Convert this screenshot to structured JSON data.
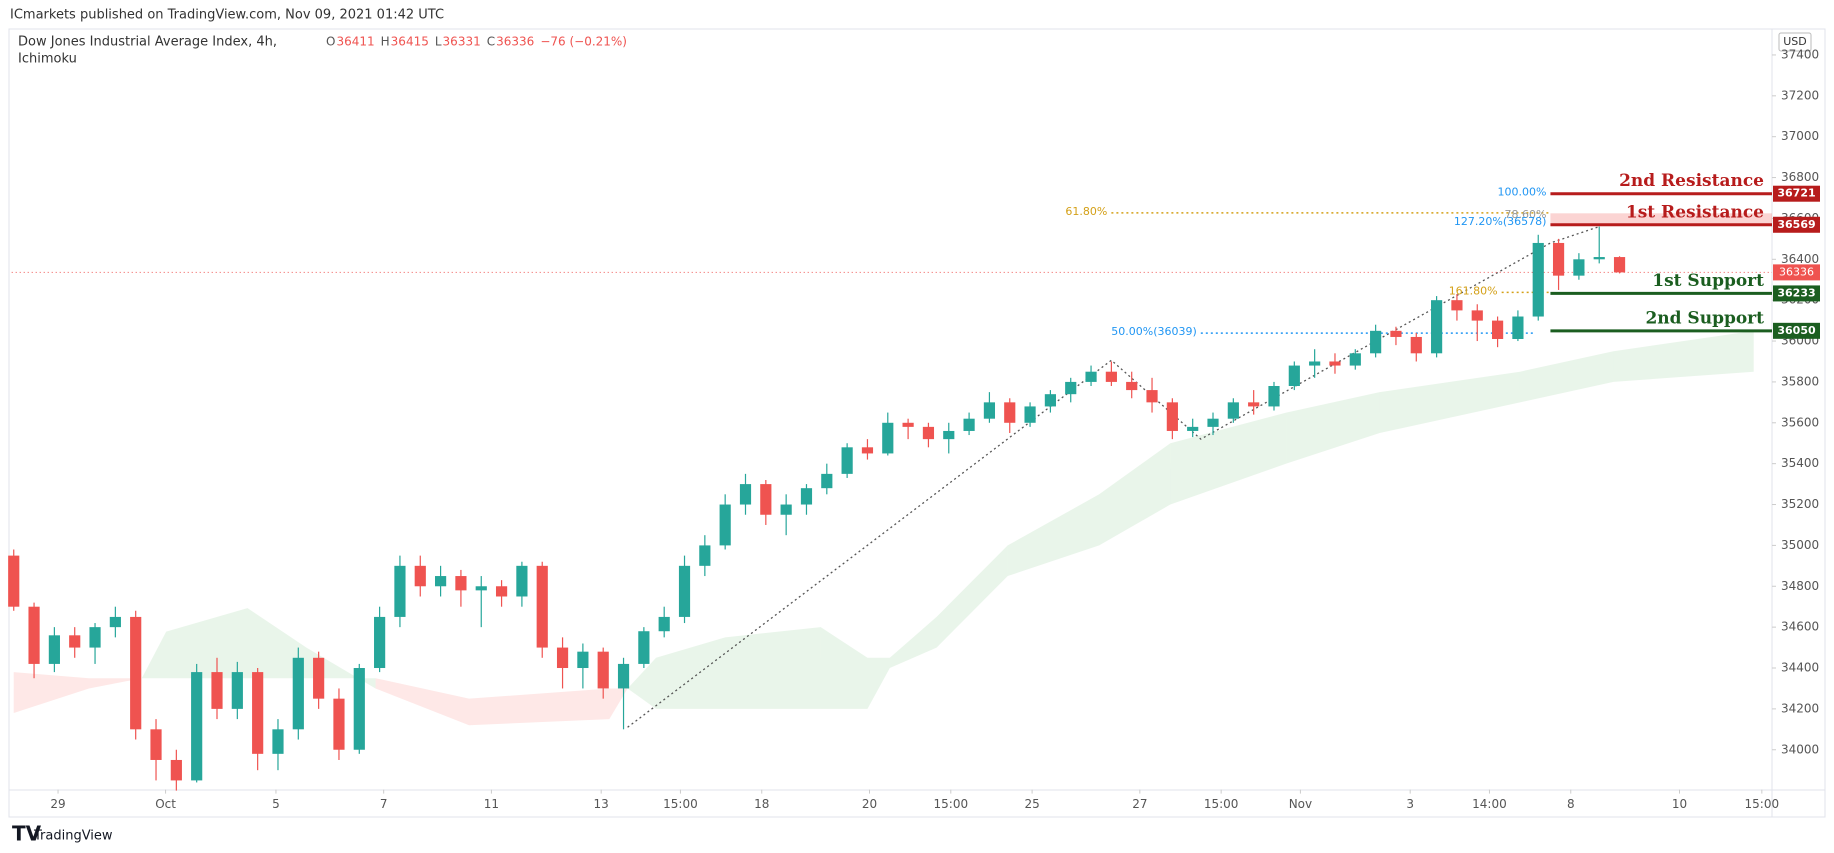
{
  "chart_data": {
    "type": "candlestick",
    "publisher": "ICmarkets published on TradingView.com, Nov 09, 2021 01:42 UTC",
    "title": "Dow Jones Industrial Average Index, 4h,",
    "indicator": "Ichimoku",
    "ohlc": [
      {
        "label": "O",
        "value": 36411
      },
      {
        "label": "H",
        "value": 36415
      },
      {
        "label": "L",
        "value": 36331
      },
      {
        "label": "C",
        "value": 36336
      }
    ],
    "change": "−76 (−0.21%)",
    "currency": "USD",
    "brand": "TradingView",
    "up_color": "#26a69a",
    "down_color": "#ef5350",
    "xlim": [
      -0.1,
      86.5
    ],
    "ylim": [
      33805,
      37526
    ],
    "yticks": [
      34000,
      34200,
      34400,
      34600,
      34800,
      35000,
      35200,
      35400,
      35600,
      35800,
      36000,
      36200,
      36400,
      36600,
      36800,
      37000,
      37200,
      37400
    ],
    "xticks": [
      {
        "value": 2.18,
        "label": "29"
      },
      {
        "value": 7.47,
        "label": "Oct"
      },
      {
        "value": 12.9,
        "label": "5"
      },
      {
        "value": 18.2,
        "label": "7"
      },
      {
        "value": 23.5,
        "label": "11"
      },
      {
        "value": 28.9,
        "label": "13"
      },
      {
        "value": 32.8,
        "label": "15:00"
      },
      {
        "value": 36.8,
        "label": "18"
      },
      {
        "value": 42.1,
        "label": "20"
      },
      {
        "value": 46.1,
        "label": "15:00"
      },
      {
        "value": 50.1,
        "label": "25"
      },
      {
        "value": 55.4,
        "label": "27"
      },
      {
        "value": 59.4,
        "label": "15:00"
      },
      {
        "value": 63.3,
        "label": "Nov"
      },
      {
        "value": 68.7,
        "label": "3"
      },
      {
        "value": 72.6,
        "label": "14:00"
      },
      {
        "value": 76.6,
        "label": "8"
      },
      {
        "value": 81.95,
        "label": "10"
      },
      {
        "value": 86.0,
        "label": "15:00"
      }
    ],
    "candles": [
      [
        34950,
        34980,
        34680,
        34700
      ],
      [
        34700,
        34720,
        34350,
        34420
      ],
      [
        34420,
        34600,
        34380,
        34560
      ],
      [
        34560,
        34600,
        34450,
        34500
      ],
      [
        34500,
        34620,
        34420,
        34600
      ],
      [
        34600,
        34700,
        34550,
        34650
      ],
      [
        34650,
        34680,
        34050,
        34100
      ],
      [
        34100,
        34150,
        33850,
        33950
      ],
      [
        33950,
        34000,
        33800,
        33850
      ],
      [
        33850,
        34420,
        33840,
        34380
      ],
      [
        34380,
        34450,
        34150,
        34200
      ],
      [
        34200,
        34430,
        34150,
        34380
      ],
      [
        34380,
        34400,
        33900,
        33980
      ],
      [
        33980,
        34150,
        33900,
        34100
      ],
      [
        34100,
        34500,
        34050,
        34450
      ],
      [
        34450,
        34480,
        34200,
        34250
      ],
      [
        34250,
        34300,
        33950,
        34000
      ],
      [
        34000,
        34420,
        33980,
        34400
      ],
      [
        34400,
        34700,
        34380,
        34650
      ],
      [
        34650,
        34950,
        34600,
        34900
      ],
      [
        34900,
        34950,
        34750,
        34800
      ],
      [
        34800,
        34900,
        34750,
        34850
      ],
      [
        34850,
        34880,
        34700,
        34780
      ],
      [
        34780,
        34850,
        34600,
        34800
      ],
      [
        34800,
        34830,
        34700,
        34750
      ],
      [
        34750,
        34920,
        34700,
        34900
      ],
      [
        34900,
        34920,
        34450,
        34500
      ],
      [
        34500,
        34550,
        34300,
        34400
      ],
      [
        34400,
        34520,
        34300,
        34480
      ],
      [
        34480,
        34500,
        34250,
        34300
      ],
      [
        34300,
        34450,
        34100,
        34420
      ],
      [
        34420,
        34600,
        34400,
        34580
      ],
      [
        34580,
        34700,
        34550,
        34650
      ],
      [
        34650,
        34950,
        34620,
        34900
      ],
      [
        34900,
        35050,
        34850,
        35000
      ],
      [
        35000,
        35250,
        34980,
        35200
      ],
      [
        35200,
        35350,
        35150,
        35300
      ],
      [
        35300,
        35320,
        35100,
        35150
      ],
      [
        35150,
        35250,
        35050,
        35200
      ],
      [
        35200,
        35300,
        35150,
        35280
      ],
      [
        35280,
        35400,
        35250,
        35350
      ],
      [
        35350,
        35500,
        35330,
        35480
      ],
      [
        35480,
        35520,
        35420,
        35450
      ],
      [
        35450,
        35650,
        35440,
        35600
      ],
      [
        35600,
        35620,
        35520,
        35580
      ],
      [
        35580,
        35600,
        35480,
        35520
      ],
      [
        35520,
        35600,
        35450,
        35560
      ],
      [
        35560,
        35650,
        35540,
        35620
      ],
      [
        35620,
        35750,
        35600,
        35700
      ],
      [
        35700,
        35720,
        35550,
        35600
      ],
      [
        35600,
        35700,
        35580,
        35680
      ],
      [
        35680,
        35760,
        35650,
        35740
      ],
      [
        35740,
        35820,
        35700,
        35800
      ],
      [
        35800,
        35880,
        35780,
        35850
      ],
      [
        35850,
        35900,
        35780,
        35800
      ],
      [
        35800,
        35850,
        35720,
        35760
      ],
      [
        35760,
        35820,
        35650,
        35700
      ],
      [
        35700,
        35720,
        35520,
        35560
      ],
      [
        35560,
        35620,
        35530,
        35580
      ],
      [
        35580,
        35650,
        35540,
        35620
      ],
      [
        35620,
        35720,
        35600,
        35700
      ],
      [
        35700,
        35760,
        35640,
        35680
      ],
      [
        35680,
        35800,
        35660,
        35780
      ],
      [
        35780,
        35900,
        35760,
        35880
      ],
      [
        35880,
        35960,
        35820,
        35900
      ],
      [
        35900,
        35940,
        35840,
        35880
      ],
      [
        35880,
        35960,
        35860,
        35940
      ],
      [
        35940,
        36080,
        35920,
        36050
      ],
      [
        36050,
        36070,
        35980,
        36020
      ],
      [
        36020,
        36040,
        35900,
        35940
      ],
      [
        35940,
        36220,
        35920,
        36200
      ],
      [
        36200,
        36230,
        36100,
        36150
      ],
      [
        36150,
        36180,
        36000,
        36100
      ],
      [
        36100,
        36120,
        35970,
        36010
      ],
      [
        36010,
        36150,
        36000,
        36120
      ],
      [
        36120,
        36520,
        36100,
        36480
      ],
      [
        36480,
        36500,
        36250,
        36320
      ],
      [
        36320,
        36430,
        36300,
        36400
      ],
      [
        36400,
        36560,
        36380,
        36411
      ],
      [
        36411,
        36415,
        36331,
        36336
      ]
    ],
    "ichimoku": {
      "x": [
        0,
        3.7,
        6.3,
        7.5,
        11.5,
        14.4,
        17.8,
        22.4,
        29.3,
        30.2,
        31.6,
        35,
        39.7,
        42,
        43.1,
        45.4,
        48.9,
        53.4,
        56.9,
        62.6,
        67.2,
        74.1,
        78.7,
        85.6
      ],
      "span_a": [
        34180,
        34300,
        34350,
        34578,
        34693,
        34500,
        34300,
        34120,
        34150,
        34300,
        34450,
        34550,
        34600,
        34450,
        34450,
        34650,
        35000,
        35250,
        35500,
        35650,
        35750,
        35850,
        35950,
        36050
      ],
      "span_b": [
        34380,
        34350,
        34350,
        34350,
        34350,
        34350,
        34350,
        34250,
        34300,
        34300,
        34200,
        34200,
        34200,
        34200,
        34400,
        34500,
        34850,
        35000,
        35200,
        35400,
        35550,
        35700,
        35800,
        35850
      ],
      "up_color": "rgba(76,175,80,0.12)",
      "down_color": "rgba(244,67,54,0.12)"
    },
    "levels": [
      {
        "name": "2nd Resistance",
        "value": 36721,
        "color": "#b71c1c"
      },
      {
        "name": "1st Resistance",
        "value": 36569,
        "color": "#b71c1c",
        "zone_top": 36625
      },
      {
        "name": "1st Support",
        "value": 36233,
        "color": "#1b5e20"
      },
      {
        "name": "2nd Support",
        "value": 36050,
        "color": "#1b5e20"
      }
    ],
    "levels_from": 75.6,
    "fibs": [
      {
        "label": "61.80%",
        "price": 36627,
        "from": 54,
        "to": 75.6,
        "color": "#d4a017"
      },
      {
        "label": "100.00%",
        "price": 36721,
        "to": 75.6,
        "color": "#2196f3"
      },
      {
        "label": "78.60%",
        "price": 36612,
        "to": 75.6,
        "color": "#999999"
      },
      {
        "label": "127.20%(36578)",
        "price": 36578,
        "to": 75.6,
        "color": "#2196f3"
      },
      {
        "label": "161.80%",
        "price": 36238,
        "from": 73.2,
        "to": 75.6,
        "color": "#d4a017"
      },
      {
        "label": "50.00%(36039)",
        "price": 36039,
        "from": 58.4,
        "to": 74.8,
        "color": "#2196f3"
      }
    ],
    "trend_path": {
      "x": [
        30.2,
        54,
        58.4,
        75.6,
        78
      ],
      "y": [
        34110,
        35906,
        35520,
        36480,
        36560
      ]
    }
  }
}
